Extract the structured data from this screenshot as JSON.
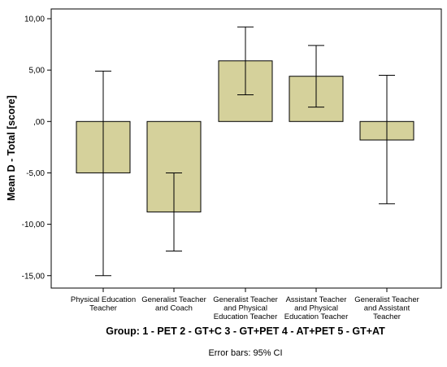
{
  "chart_data": {
    "type": "bar",
    "ylabel": "Mean D - Total  [score]",
    "xlabel": "Group: 1 - PET 2 - GT+C 3 - GT+PET 4 - AT+PET 5 - GT+AT",
    "note": "Error bars: 95% CI",
    "ylim": [
      -16.5,
      11
    ],
    "yticks": [
      10,
      5,
      0,
      -5,
      -10,
      -15
    ],
    "ytick_labels": [
      "10,00",
      "5,00",
      ",00",
      "-5,00",
      "-10,00",
      "-15,00"
    ],
    "grid": false,
    "categories": [
      [
        "Physical Education",
        "Teacher"
      ],
      [
        "Generalist Teacher",
        "and Coach"
      ],
      [
        "Generalist Teacher",
        "and Physical",
        "Education Teacher"
      ],
      [
        "Assistant Teacher",
        "and Physical",
        "Education Teacher"
      ],
      [
        "Generalist Teacher",
        "and Assistant",
        "Teacher"
      ]
    ],
    "values": [
      -5.0,
      -8.8,
      5.9,
      4.4,
      -1.8
    ],
    "ci_low": [
      -15.0,
      -12.6,
      2.6,
      1.4,
      -8.0
    ],
    "ci_high": [
      4.9,
      -5.0,
      9.2,
      7.4,
      4.5
    ],
    "colors": {
      "bar_fill": "#D5D19B",
      "bar_stroke": "#000000",
      "background": "#FFFFFF"
    }
  }
}
